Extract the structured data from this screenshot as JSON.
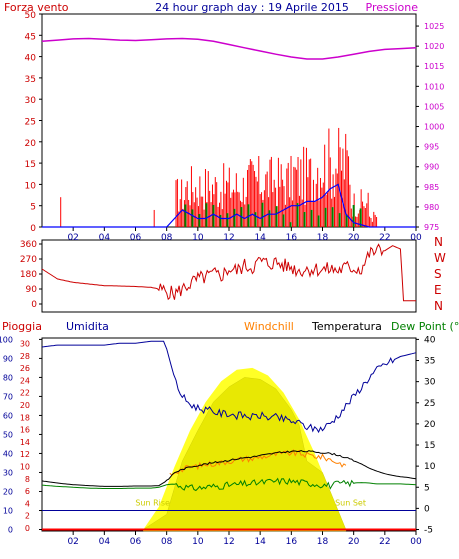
{
  "header": {
    "left_label": "Forza vento",
    "title": "24 hour graph day : 19 Aprile 2015",
    "right_label": "Pressione"
  },
  "colors": {
    "wind": "#ff0000",
    "gust": "#ff0000",
    "wind_avg": "#0000ff",
    "wind_green": "#008000",
    "pressure": "#cc00cc",
    "direction": "#cc0000",
    "rain": "#ff0000",
    "humidity": "#000099",
    "windchill": "#ff8000",
    "temperature": "#000000",
    "dewpoint": "#008000",
    "solar": "#ffff00",
    "solar_max": "#ffff00",
    "legend_pioggia": "#cc0000",
    "legend_umidita": "#000099",
    "legend_windchill": "#ff8000",
    "legend_temperatura": "#000000",
    "legend_dewpoint": "#008000",
    "axis_left_top": "#cc0000",
    "axis_right_top": "#cc00cc",
    "axis_left_bottom": "#000099",
    "axis_right_bottom": "#000000",
    "axis_rain": "#cc0000"
  },
  "chart_data": [
    {
      "type": "line",
      "title": "24 hour graph day : 19 Aprile 2015",
      "x_ticks": [
        "02",
        "04",
        "06",
        "08",
        "10",
        "12",
        "14",
        "16",
        "18",
        "20",
        "22",
        "00"
      ],
      "left_axis": {
        "label": "Forza vento",
        "ticks": [
          0,
          5,
          10,
          15,
          20,
          25,
          30,
          35,
          40,
          45,
          50
        ],
        "range": [
          0,
          50
        ]
      },
      "right_axis": {
        "label": "Pressione",
        "ticks": [
          975,
          980,
          985,
          990,
          995,
          1000,
          1005,
          1010,
          1015,
          1020,
          1025
        ],
        "range": [
          975,
          1028
        ]
      },
      "series": [
        {
          "name": "Pressione",
          "axis": "right",
          "x": [
            0,
            1,
            2,
            3,
            4,
            5,
            6,
            7,
            8,
            9,
            10,
            11,
            12,
            13,
            14,
            15,
            16,
            17,
            18,
            19,
            20,
            21,
            22,
            23,
            24
          ],
          "values": [
            1021.2,
            1021.5,
            1021.8,
            1021.9,
            1021.7,
            1021.5,
            1021.4,
            1021.6,
            1021.8,
            1021.9,
            1021.7,
            1021.2,
            1020.4,
            1019.6,
            1018.8,
            1018.0,
            1017.3,
            1016.8,
            1016.8,
            1017.3,
            1018.0,
            1018.7,
            1019.2,
            1019.4,
            1019.6
          ]
        },
        {
          "axis": "left",
          "x": [
            0,
            1,
            2,
            3,
            4,
            5,
            6,
            7,
            8,
            8.5,
            9,
            9.5,
            10,
            10.5,
            11,
            11.5,
            12,
            12.5,
            13,
            13.5,
            14,
            14.5,
            15,
            15.5,
            16,
            16.5,
            17,
            17.5,
            18,
            18.5,
            19,
            19.5,
            20,
            21,
            22,
            23,
            24
          ],
          "values": [
            0,
            0,
            0,
            0,
            0,
            0,
            0,
            0,
            0,
            2,
            4,
            3,
            2,
            2,
            3,
            2,
            2,
            3,
            2,
            3,
            2,
            3,
            3,
            4,
            5,
            5,
            6,
            6,
            7,
            9,
            10,
            3,
            1,
            0,
            0,
            0,
            0
          ]
        }
      ]
    },
    {
      "type": "line",
      "x_ticks": [
        "02",
        "04",
        "06",
        "08",
        "10",
        "12",
        "14",
        "16",
        "18",
        "20",
        "22",
        "00"
      ],
      "left_axis": {
        "ticks": [
          0,
          90,
          180,
          270,
          360
        ],
        "range": [
          0,
          360
        ]
      },
      "right_axis": {
        "labels": [
          "N",
          "W",
          "S",
          "E",
          "N"
        ]
      },
      "series": [
        {
          "x": [
            0,
            0.5,
            1,
            2,
            3,
            4,
            5,
            6,
            7,
            7.5,
            8,
            8.5,
            9,
            9.5,
            10,
            10.5,
            11,
            11.5,
            12,
            12.5,
            13,
            13.5,
            14,
            14.5,
            15,
            15.5,
            16,
            16.5,
            17,
            17.5,
            18,
            18.5,
            19,
            19.5,
            20,
            20.5,
            21,
            21.5,
            22,
            22.5,
            23,
            23.2,
            23.5,
            24
          ],
          "values": [
            210,
            180,
            150,
            130,
            120,
            110,
            108,
            105,
            100,
            90,
            75,
            60,
            90,
            120,
            150,
            160,
            180,
            170,
            210,
            200,
            230,
            220,
            260,
            240,
            250,
            230,
            220,
            200,
            210,
            210,
            205,
            210,
            200,
            220,
            215,
            210,
            300,
            320,
            320,
            350,
            330,
            20,
            20,
            20
          ]
        }
      ]
    },
    {
      "type": "line",
      "x_ticks": [
        "02",
        "04",
        "06",
        "08",
        "10",
        "12",
        "14",
        "16",
        "18",
        "20",
        "22",
        "00"
      ],
      "legend": [
        "Pioggia",
        "Umidita",
        "Windchill",
        "Temperatura",
        "Dew Point (°C"
      ],
      "left_axis_rain": {
        "ticks": [
          0,
          2,
          4,
          6,
          8,
          10,
          12,
          14,
          16,
          18,
          20,
          22,
          24,
          26,
          28,
          30
        ]
      },
      "left_axis_humidity": {
        "ticks": [
          0,
          10,
          20,
          30,
          40,
          50,
          60,
          70,
          80,
          90,
          100
        ],
        "range": [
          0,
          100
        ]
      },
      "right_axis": {
        "ticks": [
          -5,
          0,
          5,
          10,
          15,
          20,
          25,
          30,
          35,
          40
        ],
        "range": [
          -5,
          40
        ]
      },
      "annotations": [
        "Sun Rise",
        "Sun Set"
      ],
      "series": [
        {
          "name": "Umidita",
          "x": [
            0,
            1,
            2,
            3,
            4,
            5,
            6,
            7,
            7.8,
            8,
            8.3,
            8.6,
            9,
            9.5,
            10,
            10.5,
            11,
            11.5,
            12,
            12.5,
            13,
            13.5,
            14,
            14.5,
            15,
            15.5,
            16,
            16.5,
            17,
            17.5,
            18,
            18.5,
            19,
            19.5,
            20,
            20.5,
            21,
            21.5,
            22,
            22.5,
            23,
            23.5,
            24
          ],
          "values": [
            96,
            97,
            97,
            97,
            97,
            98,
            98,
            99,
            99,
            95,
            86,
            77,
            70,
            66,
            64,
            63,
            62,
            61,
            61,
            60,
            60,
            59,
            60,
            59,
            59,
            58,
            57,
            56,
            54,
            53,
            53,
            56,
            60,
            65,
            70,
            75,
            80,
            84,
            87,
            89,
            91,
            92,
            93
          ]
        },
        {
          "name": "Windchill",
          "x": [
            8.2,
            8.6,
            9,
            9.5,
            10,
            10.5,
            11,
            11.5,
            12,
            12.5,
            13,
            13.5,
            14,
            14.5,
            15,
            15.5,
            16,
            16.5,
            17,
            17.5,
            18,
            18.5,
            19,
            19.5
          ],
          "values": [
            8.0,
            8.8,
            9.2,
            9.8,
            10.0,
            10.4,
            10.6,
            10.8,
            11.2,
            11.4,
            11.8,
            11.7,
            12.2,
            12.4,
            12.8,
            12.9,
            13.1,
            13.0,
            12.6,
            12.4,
            12.1,
            11.6,
            10.8,
            10.2
          ]
        },
        {
          "name": "Temperatura",
          "x": [
            0,
            1,
            2,
            3,
            4,
            5,
            6,
            7,
            7.5,
            8,
            8.5,
            9,
            9.5,
            10,
            10.5,
            11,
            11.5,
            12,
            12.5,
            13,
            13.5,
            14,
            14.5,
            15,
            15.5,
            16,
            16.5,
            17,
            17.5,
            18,
            18.5,
            19,
            19.5,
            20,
            20.5,
            21,
            21.5,
            22,
            22.5,
            23,
            23.5,
            24
          ],
          "values": [
            6.5,
            6.0,
            5.6,
            5.4,
            5.2,
            5.2,
            5.3,
            5.3,
            5.4,
            6.5,
            8.5,
            9.2,
            9.8,
            10.2,
            10.5,
            10.8,
            11.1,
            11.4,
            11.7,
            12.0,
            12.2,
            12.5,
            12.8,
            13.1,
            13.3,
            13.5,
            13.5,
            13.5,
            13.4,
            13.2,
            13.0,
            12.6,
            12.0,
            11.3,
            10.5,
            9.5,
            8.8,
            8.2,
            7.8,
            7.5,
            7.3,
            7.0
          ]
        },
        {
          "name": "Dew Point",
          "x": [
            0,
            1,
            2,
            3,
            4,
            5,
            6,
            7,
            7.5,
            8,
            8.5,
            9,
            9.5,
            10,
            10.5,
            11,
            11.5,
            12,
            12.5,
            13,
            13.5,
            14,
            14.5,
            15,
            15.5,
            16,
            16.5,
            17,
            17.5,
            18,
            18.5,
            19,
            19.5,
            20,
            20.5,
            21,
            21.5,
            22,
            22.5,
            23,
            23.5,
            24
          ],
          "values": [
            5.5,
            5.2,
            5.0,
            4.8,
            4.7,
            4.7,
            4.8,
            4.8,
            5.0,
            5.6,
            5.8,
            5.2,
            4.8,
            4.8,
            5.0,
            5.2,
            5.3,
            5.5,
            5.6,
            5.8,
            5.9,
            6.1,
            6.3,
            6.4,
            6.5,
            6.4,
            6.2,
            6.0,
            5.8,
            5.6,
            5.4,
            5.8,
            5.9,
            6.0,
            6.1,
            6.0,
            5.8,
            5.8,
            5.8,
            5.8,
            5.7,
            5.6
          ]
        },
        {
          "name": "Pioggia",
          "x": [
            0,
            24
          ],
          "values": [
            0,
            0
          ]
        }
      ],
      "solar": {
        "x": [
          6.5,
          8,
          9,
          10,
          11,
          12,
          13,
          14,
          15,
          16,
          16.5,
          17,
          18,
          19.5
        ],
        "values": [
          0,
          8,
          36,
          52,
          67,
          75,
          80,
          79,
          74,
          63,
          55,
          36,
          30,
          0
        ]
      },
      "solar_max": {
        "x": [
          6.5,
          7.5,
          8.5,
          9.5,
          10.5,
          11.5,
          12.5,
          13.5,
          14.5,
          15.5,
          16.5,
          17.5,
          18.5,
          19.5
        ],
        "values": [
          0,
          12,
          33,
          52,
          67,
          78,
          84,
          85,
          81,
          72,
          58,
          40,
          20,
          0
        ]
      },
      "sun_line_y": 10
    }
  ]
}
